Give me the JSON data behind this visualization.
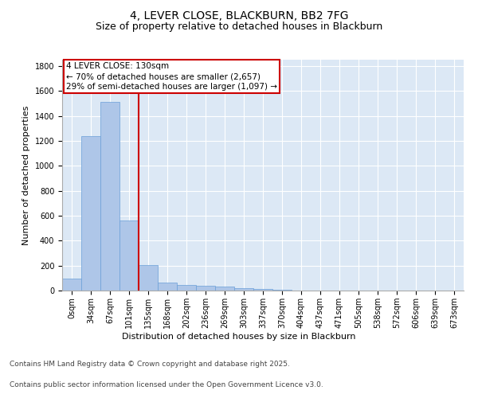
{
  "title": "4, LEVER CLOSE, BLACKBURN, BB2 7FG",
  "subtitle": "Size of property relative to detached houses in Blackburn",
  "xlabel": "Distribution of detached houses by size in Blackburn",
  "ylabel": "Number of detached properties",
  "categories": [
    "0sqm",
    "34sqm",
    "67sqm",
    "101sqm",
    "135sqm",
    "168sqm",
    "202sqm",
    "236sqm",
    "269sqm",
    "303sqm",
    "337sqm",
    "370sqm",
    "404sqm",
    "437sqm",
    "471sqm",
    "505sqm",
    "538sqm",
    "572sqm",
    "606sqm",
    "639sqm",
    "673sqm"
  ],
  "values": [
    97,
    1240,
    1510,
    560,
    205,
    65,
    47,
    40,
    30,
    22,
    10,
    5,
    2,
    1,
    0,
    0,
    0,
    0,
    0,
    0,
    0
  ],
  "bar_color": "#aec6e8",
  "bar_edge_color": "#6a9fd8",
  "vline_x_idx": 3,
  "vline_color": "#cc0000",
  "annotation_text": "4 LEVER CLOSE: 130sqm\n← 70% of detached houses are smaller (2,657)\n29% of semi-detached houses are larger (1,097) →",
  "annotation_box_color": "#ffffff",
  "annotation_box_edge_color": "#cc0000",
  "ylim": [
    0,
    1850
  ],
  "yticks": [
    0,
    200,
    400,
    600,
    800,
    1000,
    1200,
    1400,
    1600,
    1800
  ],
  "background_color": "#dce8f5",
  "footer_line1": "Contains HM Land Registry data © Crown copyright and database right 2025.",
  "footer_line2": "Contains public sector information licensed under the Open Government Licence v3.0.",
  "title_fontsize": 10,
  "subtitle_fontsize": 9,
  "axis_label_fontsize": 8,
  "tick_fontsize": 7,
  "annotation_fontsize": 7.5,
  "footer_fontsize": 6.5
}
